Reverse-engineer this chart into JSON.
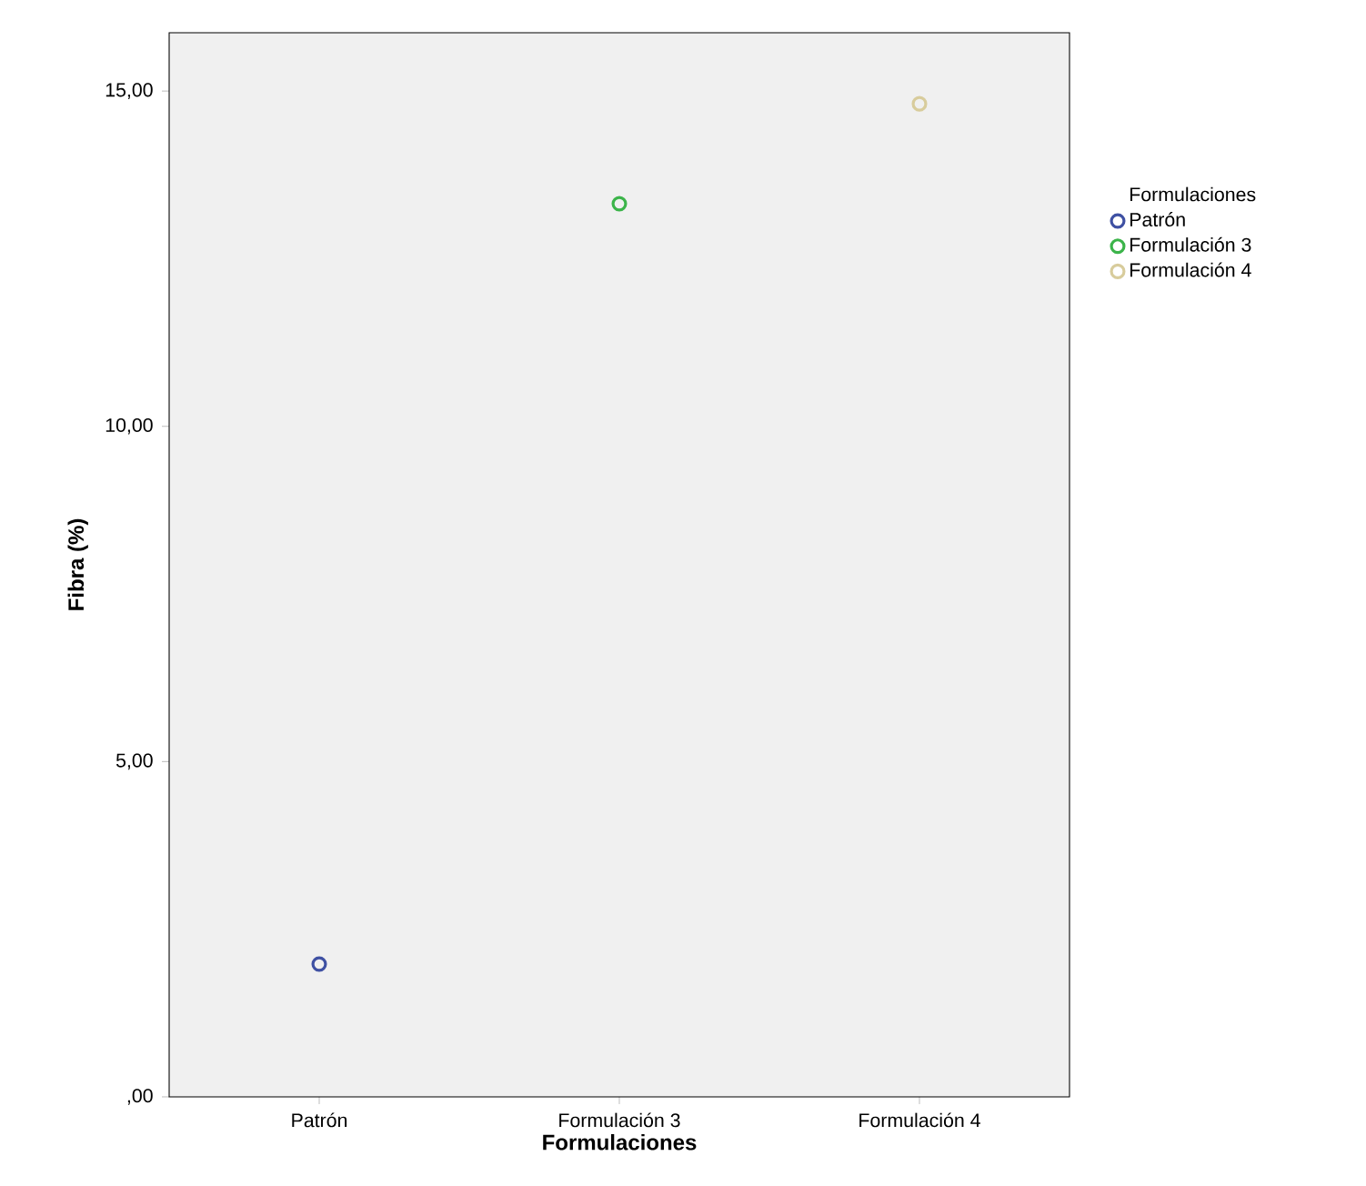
{
  "chart_data": {
    "type": "scatter",
    "xlabel": "Formulaciones",
    "ylabel": "Fibra (%)",
    "legend_title": "Formulaciones",
    "categories": [
      "Patrón",
      "Formulación 3",
      "Formulación 4"
    ],
    "series": [
      {
        "name": "Patrón",
        "color": "#3f51a3",
        "values": [
          1.98,
          null,
          null
        ]
      },
      {
        "name": "Formulación 3",
        "color": "#3cb44a",
        "values": [
          null,
          13.32,
          null
        ]
      },
      {
        "name": "Formulación 4",
        "color": "#d8cc9c",
        "values": [
          null,
          null,
          14.81
        ]
      }
    ],
    "ylim": [
      0,
      15.87
    ],
    "yticks": [
      {
        "value": 0,
        "label": ",00"
      },
      {
        "value": 5,
        "label": "5,00"
      },
      {
        "value": 10,
        "label": "10,00"
      },
      {
        "value": 15,
        "label": "15,00"
      }
    ],
    "grid": false,
    "legend": "right",
    "marker": "circle"
  }
}
